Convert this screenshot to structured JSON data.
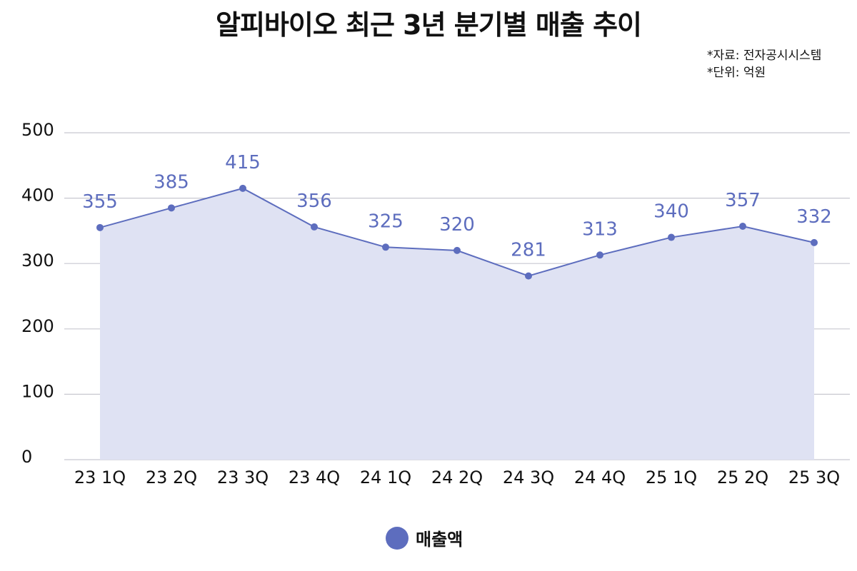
{
  "title": "알피바이오  최근 3년 분기별 매출 추이",
  "notes": {
    "source": "*자료: 전자공시시스템",
    "unit": "*단위: 억원"
  },
  "colors": {
    "line": "#5d6dbe",
    "area": "#dfe2f3",
    "grid": "#c8c8d0"
  },
  "chart_data": {
    "type": "area",
    "categories": [
      "23 1Q",
      "23 2Q",
      "23 3Q",
      "23 4Q",
      "24 1Q",
      "24 2Q",
      "24 3Q",
      "24 4Q",
      "25 1Q",
      "25 2Q",
      "25 3Q"
    ],
    "series": [
      {
        "name": "매출액",
        "values": [
          355,
          385,
          415,
          356,
          325,
          320,
          281,
          313,
          340,
          357,
          332
        ]
      }
    ],
    "yticks": [
      0,
      100,
      200,
      300,
      400,
      500
    ],
    "ylim": [
      0,
      500
    ],
    "grid": true,
    "legend_position": "bottom-center",
    "data_labels": true
  }
}
